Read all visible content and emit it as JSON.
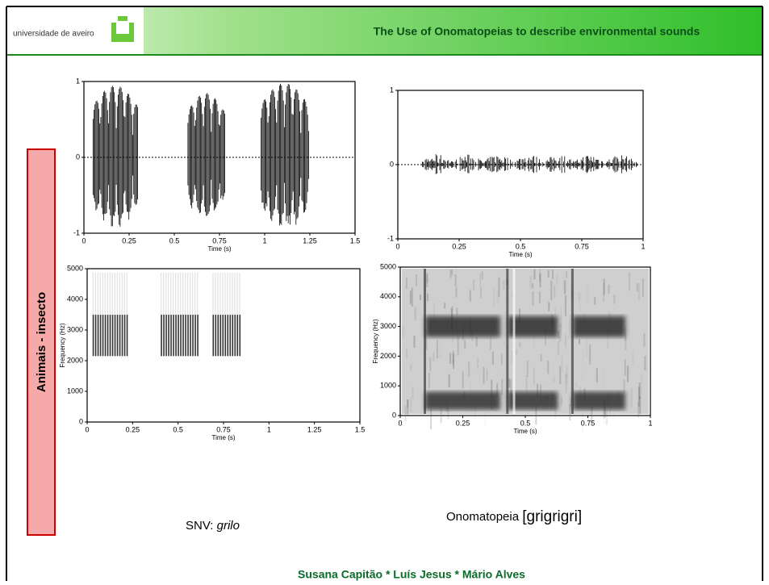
{
  "header": {
    "university": "universidade de aveiro",
    "title": "The Use of Onomatopeias to describe environmental sounds"
  },
  "side_label": "Animais - insecto",
  "panels": [
    {
      "yticks": [
        "1",
        "0",
        "-1"
      ],
      "xticks": [
        "0",
        "0.25",
        "0.5",
        "0.75",
        "1",
        "1.25",
        "1.5"
      ],
      "xlabel": "Time (s)"
    },
    {
      "yticks": [
        "5000",
        "4000",
        "3000",
        "2000",
        "1000",
        "0"
      ],
      "ylabel": "Frequency (Hz)",
      "xticks": [
        "0",
        "0.25",
        "0.5",
        "0.75",
        "1",
        "1.25",
        "1.5"
      ],
      "xlabel": "Time (s)"
    },
    {
      "yticks": [
        "1",
        "0",
        "-1"
      ],
      "xticks": [
        "0",
        "0.25",
        "0.5",
        "0.75",
        "1"
      ],
      "xlabel": "Time (s)"
    },
    {
      "yticks": [
        "5000",
        "4000",
        "3000",
        "2000",
        "1000",
        "0"
      ],
      "ylabel": "Frequency (Hz)",
      "xticks": [
        "0",
        "0.25",
        "0.5",
        "0.75",
        "1"
      ],
      "xlabel": "Time (s)"
    }
  ],
  "captions": [
    {
      "prefix": "SNV:",
      "word": "grilo"
    },
    {
      "prefix": "Onomatopeia",
      "word": "[grigrigri]"
    }
  ],
  "footer": "Susana Capitão * Luís Jesus * Mário Alves"
}
